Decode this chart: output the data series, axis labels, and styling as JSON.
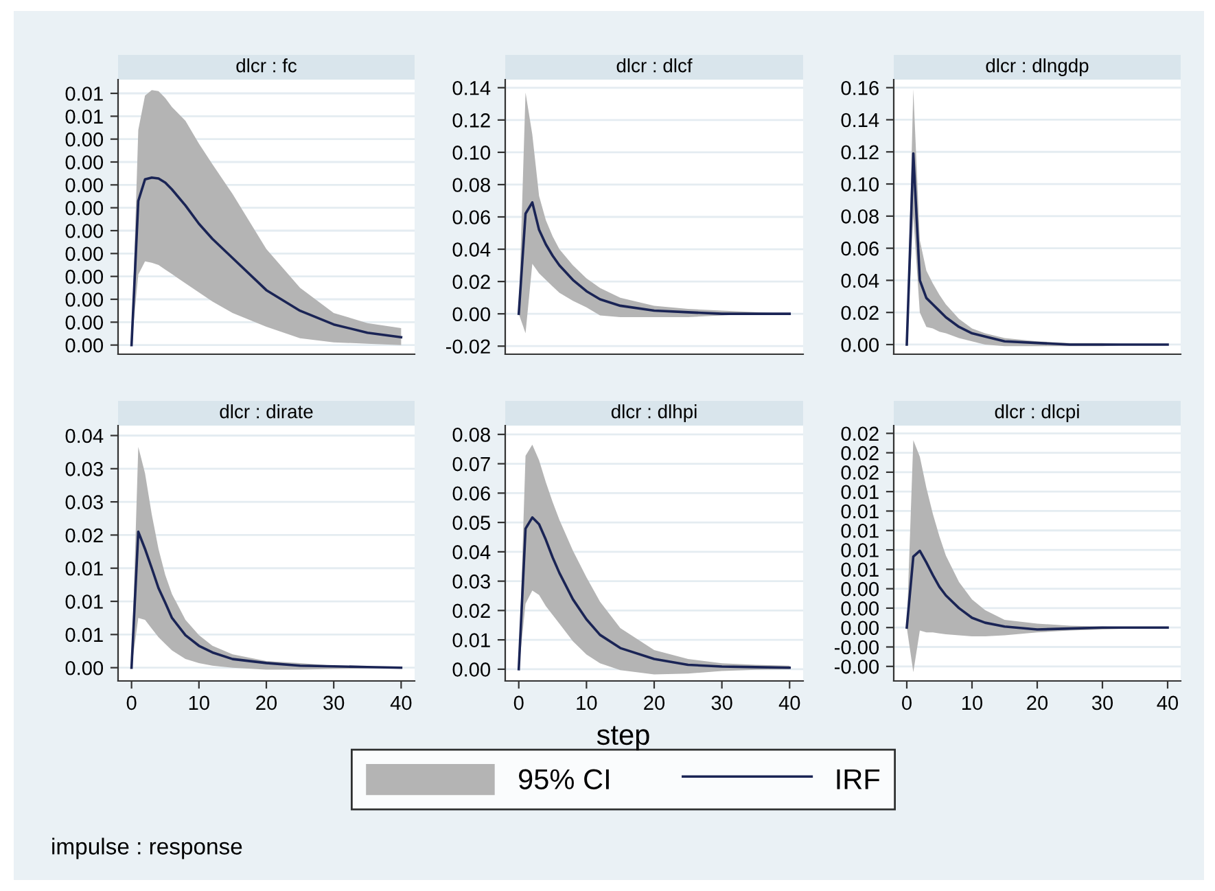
{
  "chart_data": [
    {
      "type": "line",
      "title": "dlcr : fc",
      "x": [
        0,
        1,
        2,
        3,
        4,
        5,
        6,
        8,
        10,
        12,
        15,
        20,
        25,
        30,
        35,
        40
      ],
      "xlim": [
        -2,
        42
      ],
      "xticks": [
        0,
        10,
        20,
        30,
        40
      ],
      "tick_labels": "y",
      "grid": "y",
      "ylim": [
        -0.0002,
        0.0058
      ],
      "yticks": [
        {
          "value": 0,
          "label": "0.00"
        },
        {
          "value": 0.0005,
          "label": "0.00"
        },
        {
          "value": 0.001,
          "label": "0.00"
        },
        {
          "value": 0.0015,
          "label": "0.00"
        },
        {
          "value": 0.002,
          "label": "0.00"
        },
        {
          "value": 0.0025,
          "label": "0.00"
        },
        {
          "value": 0.003,
          "label": "0.00"
        },
        {
          "value": 0.0035,
          "label": "0.00"
        },
        {
          "value": 0.004,
          "label": "0.00"
        },
        {
          "value": 0.0045,
          "label": "0.00"
        },
        {
          "value": 0.005,
          "label": "0.01"
        },
        {
          "value": 0.0055,
          "label": "0.01"
        }
      ],
      "series": [
        {
          "color": "#1a2455",
          "values": [
            0,
            0.00315,
            0.00362,
            0.00366,
            0.00364,
            0.00355,
            0.0034,
            0.00305,
            0.00265,
            0.00232,
            0.0019,
            0.0012,
            0.00075,
            0.00045,
            0.00027,
            0.00017
          ],
          "lower": [
            0,
            0.00154,
            0.00183,
            0.0018,
            0.00175,
            0.00165,
            0.00155,
            0.00135,
            0.00115,
            0.00095,
            0.0007,
            0.0004,
            0.00015,
            6e-05,
            3e-05,
            0
          ],
          "upper": [
            0,
            0.0047,
            0.00545,
            0.00557,
            0.00555,
            0.0054,
            0.0052,
            0.0049,
            0.0044,
            0.00395,
            0.0033,
            0.0021,
            0.00125,
            0.0007,
            0.00048,
            0.00037
          ]
        }
      ]
    },
    {
      "type": "line",
      "title": "dlcr : dlcf",
      "x": [
        0,
        1,
        2,
        3,
        4,
        5,
        6,
        8,
        10,
        12,
        15,
        20,
        25,
        30,
        35,
        40
      ],
      "xlim": [
        -2,
        42
      ],
      "xticks": [
        0,
        10,
        20,
        30,
        40
      ],
      "tick_labels": "y",
      "grid": "y",
      "ylim": [
        -0.025,
        0.145
      ],
      "yticks": [
        {
          "value": -0.02,
          "label": "-0.02"
        },
        {
          "value": 0,
          "label": "0.00"
        },
        {
          "value": 0.02,
          "label": "0.02"
        },
        {
          "value": 0.04,
          "label": "0.04"
        },
        {
          "value": 0.06,
          "label": "0.06"
        },
        {
          "value": 0.08,
          "label": "0.08"
        },
        {
          "value": 0.1,
          "label": "0.10"
        },
        {
          "value": 0.12,
          "label": "0.12"
        },
        {
          "value": 0.14,
          "label": "0.14"
        }
      ],
      "series": [
        {
          "color": "#1a2455",
          "values": [
            0,
            0.062,
            0.069,
            0.052,
            0.043,
            0.036,
            0.03,
            0.021,
            0.014,
            0.009,
            0.005,
            0.002,
            0.001,
            0,
            0,
            0
          ],
          "lower": [
            0,
            -0.012,
            0.031,
            0.025,
            0.021,
            0.017,
            0.013,
            0.008,
            0.004,
            -0.001,
            -0.002,
            -0.002,
            -0.002,
            -0.001,
            0,
            0
          ],
          "upper": [
            0,
            0.137,
            0.111,
            0.073,
            0.058,
            0.048,
            0.04,
            0.03,
            0.022,
            0.016,
            0.01,
            0.005,
            0.003,
            0.002,
            0.001,
            0
          ]
        }
      ]
    },
    {
      "type": "line",
      "title": "dlcr : dlngdp",
      "x": [
        0,
        1,
        2,
        3,
        4,
        5,
        6,
        8,
        10,
        12,
        15,
        20,
        25,
        30,
        35,
        40
      ],
      "xlim": [
        -2,
        42
      ],
      "xticks": [
        0,
        10,
        20,
        30,
        40
      ],
      "tick_labels": "y",
      "grid": "y",
      "ylim": [
        -0.006,
        0.165
      ],
      "yticks": [
        {
          "value": 0,
          "label": "0.00"
        },
        {
          "value": 0.02,
          "label": "0.02"
        },
        {
          "value": 0.04,
          "label": "0.04"
        },
        {
          "value": 0.06,
          "label": "0.06"
        },
        {
          "value": 0.08,
          "label": "0.08"
        },
        {
          "value": 0.1,
          "label": "0.10"
        },
        {
          "value": 0.12,
          "label": "0.12"
        },
        {
          "value": 0.14,
          "label": "0.14"
        },
        {
          "value": 0.16,
          "label": "0.16"
        }
      ],
      "series": [
        {
          "color": "#1a2455",
          "values": [
            0,
            0.119,
            0.04,
            0.029,
            0.025,
            0.021,
            0.017,
            0.011,
            0.007,
            0.005,
            0.002,
            0.001,
            0,
            0,
            0,
            0
          ],
          "lower": [
            0,
            0.08,
            0.02,
            0.011,
            0.01,
            0.008,
            0.007,
            0.004,
            0.002,
            0,
            -0.001,
            -0.001,
            -0.001,
            -0.001,
            0,
            0
          ],
          "upper": [
            0,
            0.159,
            0.065,
            0.046,
            0.038,
            0.031,
            0.025,
            0.016,
            0.01,
            0.007,
            0.004,
            0.002,
            0.001,
            0.001,
            0,
            0
          ]
        }
      ]
    },
    {
      "type": "line",
      "title": "dlcr : dirate",
      "x": [
        0,
        1,
        2,
        3,
        4,
        5,
        6,
        8,
        10,
        12,
        15,
        20,
        25,
        30,
        35,
        40
      ],
      "xlim": [
        -2,
        42
      ],
      "xticks": [
        0,
        10,
        20,
        30,
        40
      ],
      "grid": "y",
      "ylim": [
        -0.002,
        0.0365
      ],
      "yticks": [
        {
          "value": 0,
          "label": "0.00"
        },
        {
          "value": 0.005,
          "label": "0.01"
        },
        {
          "value": 0.01,
          "label": "0.01"
        },
        {
          "value": 0.015,
          "label": "0.01"
        },
        {
          "value": 0.02,
          "label": "0.02"
        },
        {
          "value": 0.025,
          "label": "0.03"
        },
        {
          "value": 0.03,
          "label": "0.03"
        },
        {
          "value": 0.035,
          "label": "0.04"
        }
      ],
      "series": [
        {
          "color": "#1a2455",
          "values": [
            0,
            0.0205,
            0.0179,
            0.015,
            0.012,
            0.0098,
            0.0075,
            0.0049,
            0.0033,
            0.0023,
            0.0013,
            0.0007,
            0.0003,
            0.0002,
            0.0001,
            0
          ],
          "lower": [
            0,
            0.0075,
            0.0072,
            0.0059,
            0.0046,
            0.0036,
            0.0026,
            0.0013,
            0.0007,
            0.0003,
            0,
            -0.0003,
            -0.0003,
            -0.0002,
            -0.0001,
            0
          ],
          "upper": [
            0,
            0.0333,
            0.0293,
            0.0231,
            0.0179,
            0.014,
            0.0111,
            0.0072,
            0.0049,
            0.0033,
            0.002,
            0.001,
            0.0007,
            0.0003,
            0.0001,
            0
          ]
        }
      ]
    },
    {
      "type": "line",
      "title": "dlcr : dlhpi",
      "x": [
        0,
        1,
        2,
        3,
        4,
        5,
        6,
        8,
        10,
        12,
        15,
        20,
        25,
        30,
        35,
        40
      ],
      "xlim": [
        -2,
        42
      ],
      "xticks": [
        0,
        10,
        20,
        30,
        40
      ],
      "grid": "y",
      "ylim": [
        -0.004,
        0.083
      ],
      "xlabel": "step",
      "legend": "bottom",
      "annotations": [
        "95% CI",
        "impulse : response"
      ],
      "yticks": [
        {
          "value": 0,
          "label": "0.00"
        },
        {
          "value": 0.01,
          "label": "0.01"
        },
        {
          "value": 0.02,
          "label": "0.02"
        },
        {
          "value": 0.03,
          "label": "0.03"
        },
        {
          "value": 0.04,
          "label": "0.04"
        },
        {
          "value": 0.05,
          "label": "0.05"
        },
        {
          "value": 0.06,
          "label": "0.06"
        },
        {
          "value": 0.07,
          "label": "0.07"
        },
        {
          "value": 0.08,
          "label": "0.08"
        }
      ],
      "series": [
        {
          "name": "IRF",
          "color": "#1a2455",
          "values": [
            0,
            0.0479,
            0.0517,
            0.0494,
            0.0441,
            0.0381,
            0.0328,
            0.0238,
            0.017,
            0.0117,
            0.0072,
            0.0035,
            0.0015,
            0.0009,
            0.0007,
            0.0005
          ],
          "lower": [
            0,
            0.0223,
            0.0268,
            0.0253,
            0.0215,
            0.0185,
            0.0155,
            0.0095,
            0.005,
            0.002,
            -0.0003,
            -0.0018,
            -0.0015,
            -0.0006,
            -0.0002,
            0
          ],
          "upper": [
            0,
            0.0727,
            0.0765,
            0.0712,
            0.0637,
            0.057,
            0.0509,
            0.0404,
            0.0313,
            0.023,
            0.014,
            0.0065,
            0.0035,
            0.002,
            0.0015,
            0.0012
          ]
        }
      ]
    },
    {
      "type": "line",
      "title": "dlcr : dlcpi",
      "x": [
        0,
        1,
        2,
        3,
        4,
        5,
        6,
        8,
        10,
        12,
        15,
        20,
        25,
        30,
        35,
        40
      ],
      "xlim": [
        -2,
        42
      ],
      "xticks": [
        0,
        10,
        20,
        30,
        40
      ],
      "grid": "y",
      "ylim": [
        -0.0055,
        0.0208
      ],
      "yticks": [
        {
          "value": -0.004,
          "label": "-0.00"
        },
        {
          "value": -0.002,
          "label": "-0.00"
        },
        {
          "value": 0,
          "label": "0.00"
        },
        {
          "value": 0.002,
          "label": "0.00"
        },
        {
          "value": 0.004,
          "label": "0.00"
        },
        {
          "value": 0.006,
          "label": "0.01"
        },
        {
          "value": 0.008,
          "label": "0.01"
        },
        {
          "value": 0.01,
          "label": "0.01"
        },
        {
          "value": 0.012,
          "label": "0.01"
        },
        {
          "value": 0.014,
          "label": "0.01"
        },
        {
          "value": 0.016,
          "label": "0.02"
        },
        {
          "value": 0.018,
          "label": "0.02"
        },
        {
          "value": 0.02,
          "label": "0.02"
        }
      ],
      "series": [
        {
          "color": "#1a2455",
          "values": [
            0,
            0.0073,
            0.0079,
            0.0067,
            0.0054,
            0.0042,
            0.0033,
            0.002,
            0.001,
            0.0005,
            0.0001,
            -0.0002,
            -0.0001,
            0,
            0,
            0
          ],
          "lower": [
            0,
            -0.0046,
            -0.0003,
            -0.0005,
            -0.0005,
            -0.0006,
            -0.0007,
            -0.0008,
            -0.0009,
            -0.0009,
            -0.0008,
            -0.0005,
            -0.0003,
            -0.0002,
            -0.0001,
            0
          ],
          "upper": [
            0,
            0.0193,
            0.0176,
            0.0144,
            0.0117,
            0.0094,
            0.0074,
            0.0047,
            0.0029,
            0.0018,
            0.0008,
            0.0004,
            0.0002,
            0.0001,
            0,
            0
          ]
        }
      ]
    }
  ]
}
